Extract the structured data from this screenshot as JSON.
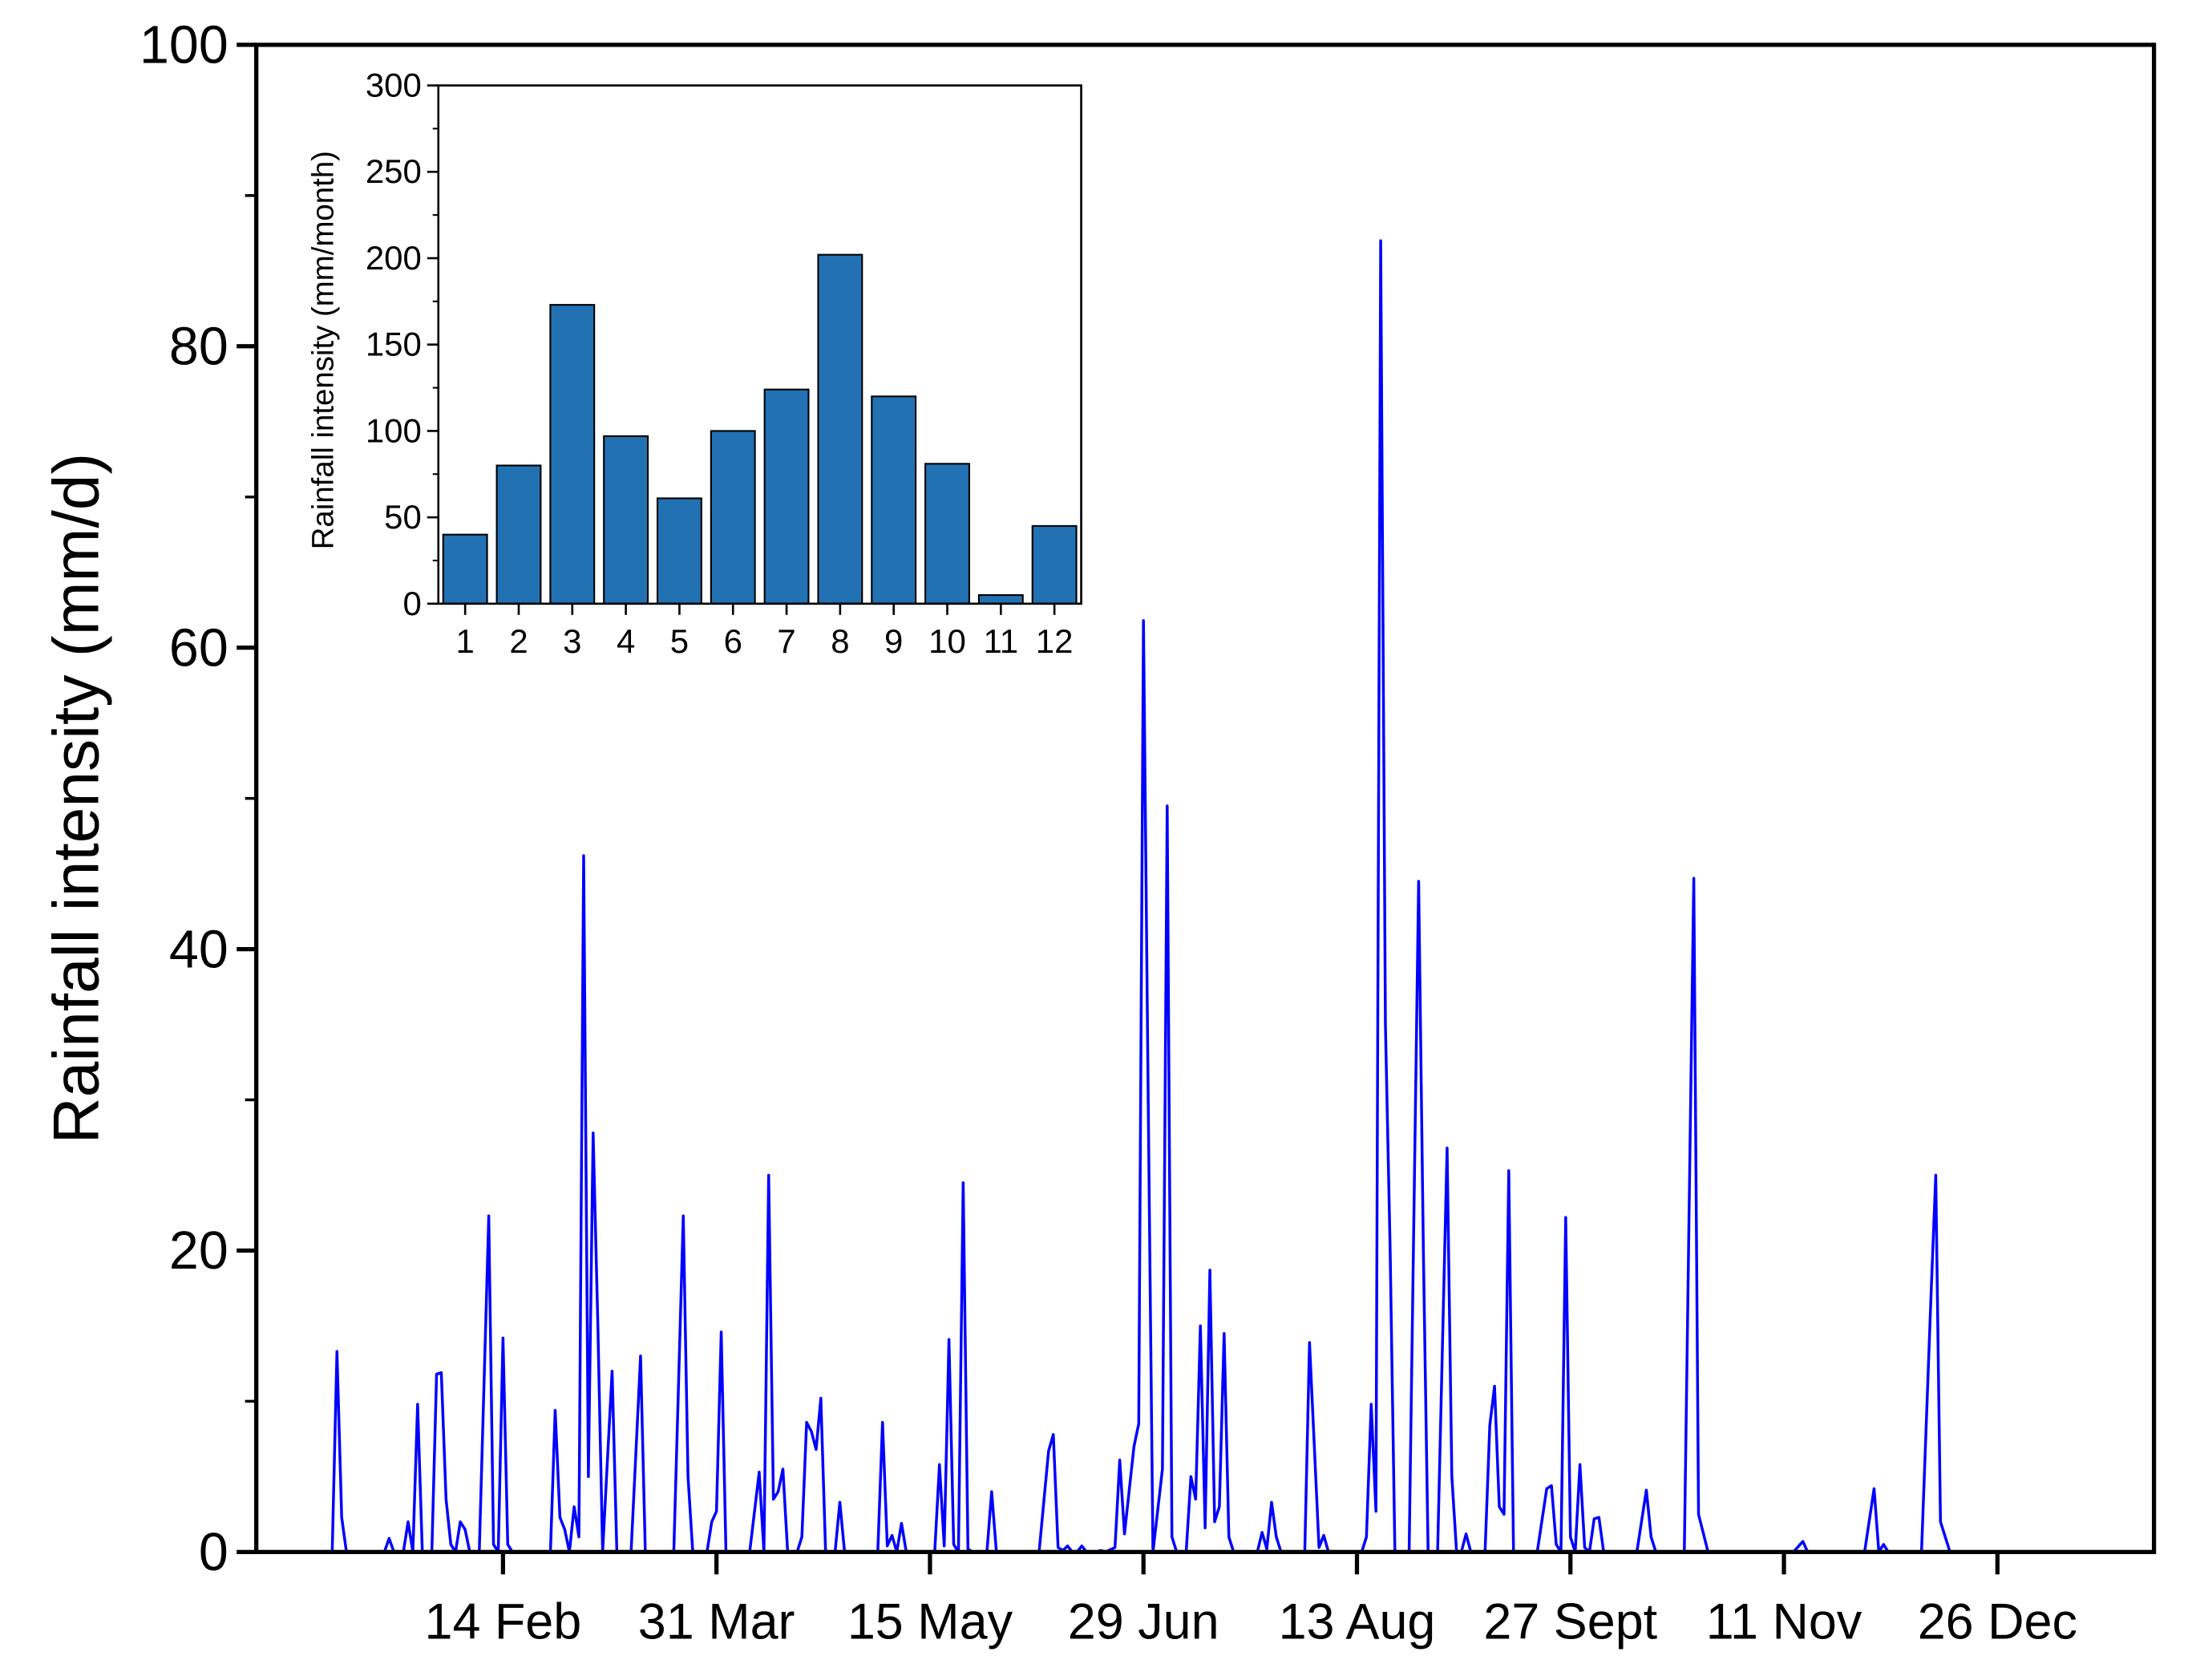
{
  "chart_data": [
    {
      "type": "line",
      "y_label": "Rainfall intensity (mm/d)",
      "color": "#0000ff",
      "xlim": [
        -7,
        393
      ],
      "xticks": [
        {
          "value": 45,
          "label": "14 Feb"
        },
        {
          "value": 90,
          "label": "31 Mar"
        },
        {
          "value": 135,
          "label": "15 May"
        },
        {
          "value": 180,
          "label": "29 Jun"
        },
        {
          "value": 225,
          "label": "13 Aug"
        },
        {
          "value": 270,
          "label": "27 Sept"
        },
        {
          "value": 315,
          "label": "11 Nov"
        },
        {
          "value": 360,
          "label": "26 Dec"
        }
      ],
      "ylim": [
        0,
        100
      ],
      "yticks": [
        0,
        20,
        40,
        60,
        80,
        100
      ],
      "x": [
        9,
        10,
        11,
        12,
        20,
        21,
        22,
        24,
        25,
        26,
        27,
        28,
        30,
        31,
        32,
        33,
        34,
        35,
        36,
        37,
        38,
        40,
        42,
        43,
        44,
        45,
        46,
        47,
        55,
        56,
        57,
        58,
        59,
        60,
        61,
        62,
        63,
        64,
        65,
        66,
        68,
        69,
        72,
        74,
        75,
        81,
        83,
        84,
        85,
        88,
        89,
        90,
        91,
        92,
        97,
        99,
        100,
        101,
        102,
        103,
        104,
        105,
        107,
        108,
        109,
        110,
        111,
        112,
        113,
        115,
        116,
        117,
        124,
        125,
        126,
        127,
        128,
        129,
        130,
        136,
        137,
        138,
        139,
        140,
        141,
        142,
        143,
        144,
        147,
        148,
        149,
        158,
        160,
        161,
        162,
        163,
        164,
        165,
        166,
        167,
        168,
        170,
        171,
        172,
        174,
        175,
        176,
        178,
        179,
        180,
        181,
        182,
        184,
        185,
        186,
        187,
        189,
        190,
        191,
        192,
        193,
        194,
        195,
        196,
        197,
        198,
        199,
        204,
        205,
        206,
        207,
        208,
        209,
        214,
        215,
        217,
        218,
        219,
        226,
        227,
        228,
        229,
        230,
        231,
        232,
        233,
        236,
        238,
        239,
        240,
        242,
        244,
        245,
        246,
        247,
        248,
        249,
        252,
        253,
        254,
        255,
        256,
        257,
        258,
        263,
        265,
        266,
        267,
        268,
        269,
        270,
        271,
        272,
        273,
        274,
        275,
        276,
        277,
        284,
        286,
        287,
        288,
        294,
        296,
        297,
        299,
        317,
        319,
        320,
        332,
        334,
        335,
        336,
        337,
        344,
        346,
        347,
        348,
        350,
        365
      ],
      "values": [
        0,
        13.3,
        2.3,
        0,
        0,
        0.9,
        0,
        0,
        2,
        0,
        9.8,
        0,
        0,
        11.8,
        11.9,
        3.5,
        0.5,
        0,
        2,
        1.5,
        0,
        0,
        22.3,
        0.5,
        0,
        14.2,
        0.5,
        0,
        0,
        9.4,
        2.3,
        1.5,
        0,
        3,
        1,
        46.2,
        5,
        27.8,
        15,
        0,
        12,
        0,
        0,
        13,
        0,
        0,
        22.3,
        5,
        0,
        0,
        2,
        2.7,
        14.6,
        0,
        0,
        5.3,
        0,
        25,
        3.5,
        4,
        5.5,
        0,
        0,
        1,
        8.6,
        8,
        6.8,
        10.2,
        0,
        0,
        3.3,
        0,
        0,
        8.6,
        0.4,
        1.1,
        0,
        1.9,
        0,
        0,
        5.8,
        0.4,
        14.1,
        0.5,
        0,
        24.5,
        0.2,
        0,
        0,
        4,
        0,
        0,
        6.7,
        7.8,
        0.3,
        0.1,
        0.4,
        0,
        0,
        0.4,
        0,
        0,
        0.1,
        0,
        0.3,
        6.1,
        1.2,
        7,
        8.5,
        61.8,
        30,
        0,
        5.5,
        49.5,
        1,
        0,
        0,
        5,
        3.5,
        15,
        1.6,
        18.7,
        2,
        3,
        14.5,
        1,
        0,
        0,
        1.3,
        0.2,
        3.3,
        1,
        0,
        0,
        13.9,
        0.3,
        1.1,
        0,
        0,
        1,
        9.8,
        2.7,
        87,
        35,
        20,
        0,
        0,
        44.5,
        20,
        0,
        0,
        26.8,
        5,
        0,
        0,
        1.2,
        0,
        0,
        8.4,
        11,
        3,
        2.5,
        25.3,
        0,
        0,
        4.2,
        4.4,
        0.5,
        0,
        22.2,
        1,
        0,
        5.8,
        0.3,
        0,
        2.2,
        2.3,
        0,
        0,
        4.1,
        1,
        0,
        0,
        44.7,
        2.5,
        0,
        0,
        0.7,
        0,
        0,
        4.2,
        0,
        0.5,
        0,
        0,
        17,
        25,
        2,
        0,
        0
      ]
    },
    {
      "type": "bar",
      "y_label": "Rainfall intensity (mm/month)",
      "color": "#2271b3",
      "categories": [
        "1",
        "2",
        "3",
        "4",
        "5",
        "6",
        "7",
        "8",
        "9",
        "10",
        "11",
        "12"
      ],
      "values": [
        40,
        80,
        173,
        97,
        61,
        100,
        124,
        202,
        120,
        81,
        5,
        45
      ],
      "ylim": [
        0,
        300
      ],
      "yticks": [
        0,
        50,
        100,
        150,
        200,
        250,
        300
      ]
    }
  ]
}
